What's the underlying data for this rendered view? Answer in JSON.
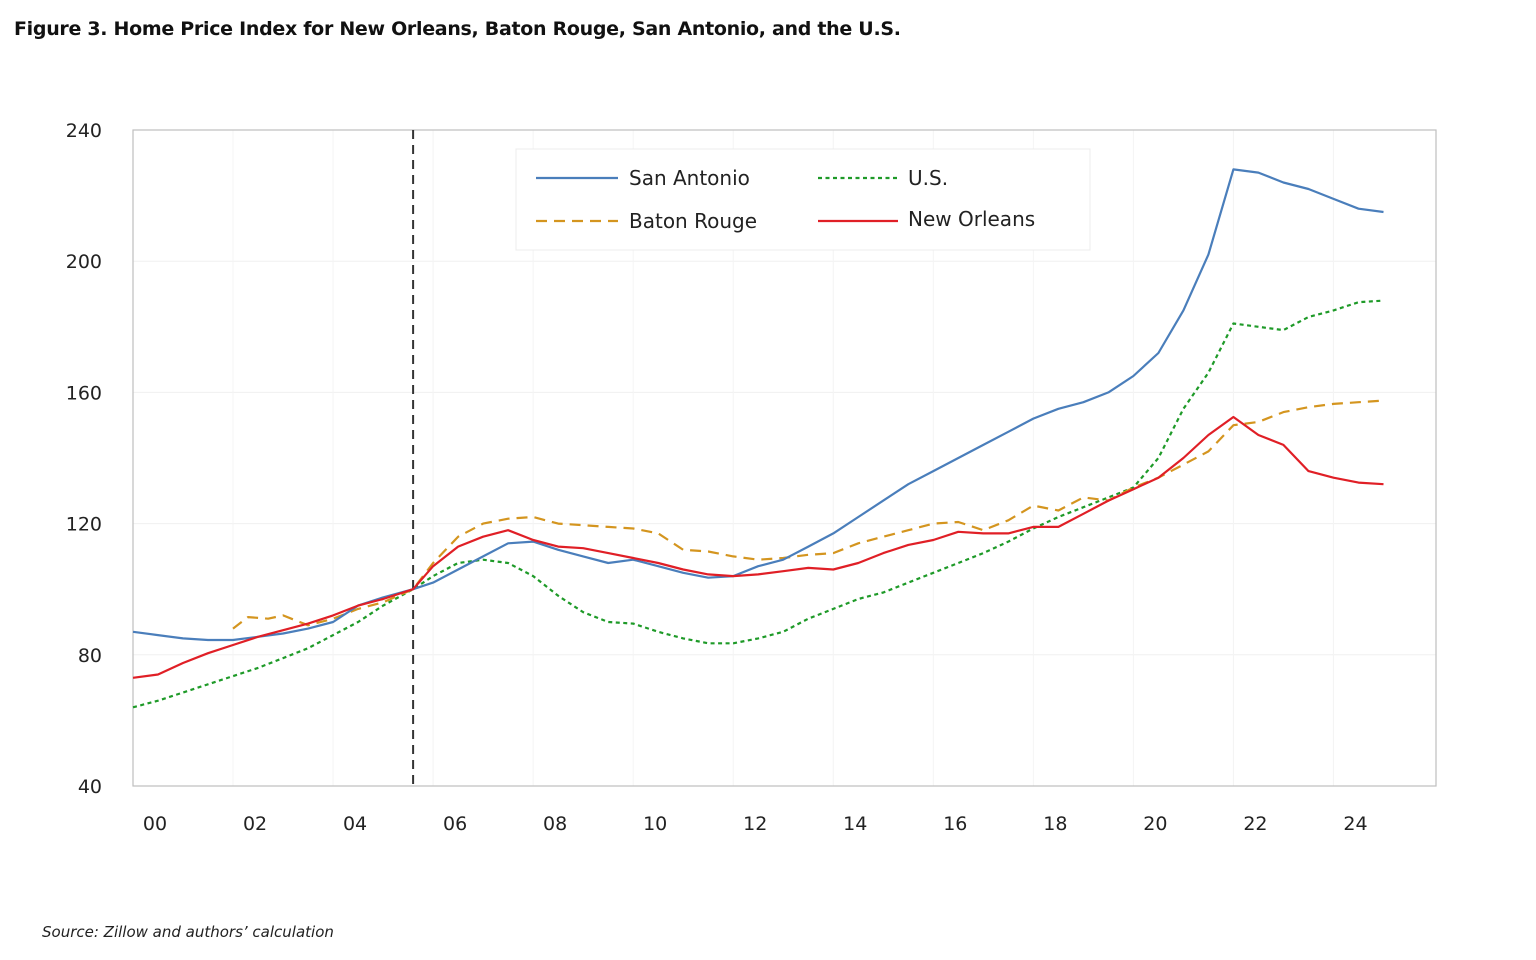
{
  "figure": {
    "title": "Figure 3. Home Price Index for New Orleans, Baton Rouge, San Antonio, and the U.S.",
    "source": "Source: Zillow and authors’ calculation"
  },
  "chart_data": {
    "type": "line",
    "title": "Figure 3. Home Price Index for New Orleans, Baton Rouge, San Antonio, and the U.S.",
    "xlabel": "",
    "ylabel": "",
    "xlim": [
      2000,
      2025.6
    ],
    "ylim": [
      40,
      240
    ],
    "yticks": [
      40,
      80,
      120,
      160,
      200,
      240
    ],
    "xticks": [
      {
        "value": 2000,
        "label": "00"
      },
      {
        "value": 2002,
        "label": "02"
      },
      {
        "value": 2004,
        "label": "04"
      },
      {
        "value": 2006,
        "label": "06"
      },
      {
        "value": 2008,
        "label": "08"
      },
      {
        "value": 2010,
        "label": "10"
      },
      {
        "value": 2012,
        "label": "12"
      },
      {
        "value": 2014,
        "label": "14"
      },
      {
        "value": 2016,
        "label": "16"
      },
      {
        "value": 2018,
        "label": "18"
      },
      {
        "value": 2020,
        "label": "20"
      },
      {
        "value": 2022,
        "label": "22"
      },
      {
        "value": 2024,
        "label": "24"
      }
    ],
    "reference_line": {
      "x": 2005.6,
      "style": "dashed",
      "color": "#333333"
    },
    "grid": true,
    "legend_position": "top-center",
    "series": [
      {
        "name": "San Antonio",
        "color": "#4a7ebb",
        "dash": "solid",
        "points": [
          [
            2000,
            87
          ],
          [
            2000.5,
            86
          ],
          [
            2001,
            85
          ],
          [
            2001.5,
            84.5
          ],
          [
            2002,
            84.5
          ],
          [
            2002.5,
            85.5
          ],
          [
            2003,
            86.5
          ],
          [
            2003.5,
            88
          ],
          [
            2004,
            90
          ],
          [
            2004.5,
            95
          ],
          [
            2005,
            97.5
          ],
          [
            2005.6,
            100
          ],
          [
            2006,
            102
          ],
          [
            2006.5,
            106
          ],
          [
            2007,
            110
          ],
          [
            2007.5,
            114
          ],
          [
            2008,
            114.5
          ],
          [
            2008.5,
            112
          ],
          [
            2009,
            110
          ],
          [
            2009.5,
            108
          ],
          [
            2010,
            109
          ],
          [
            2010.5,
            107
          ],
          [
            2011,
            105
          ],
          [
            2011.5,
            103.5
          ],
          [
            2012,
            104
          ],
          [
            2012.5,
            107
          ],
          [
            2013,
            109
          ],
          [
            2013.5,
            113
          ],
          [
            2014,
            117
          ],
          [
            2014.5,
            122
          ],
          [
            2015,
            127
          ],
          [
            2015.5,
            132
          ],
          [
            2016,
            136
          ],
          [
            2016.5,
            140
          ],
          [
            2017,
            144
          ],
          [
            2017.5,
            148
          ],
          [
            2018,
            152
          ],
          [
            2018.5,
            155
          ],
          [
            2019,
            157
          ],
          [
            2019.5,
            160
          ],
          [
            2020,
            165
          ],
          [
            2020.5,
            172
          ],
          [
            2021,
            185
          ],
          [
            2021.5,
            202
          ],
          [
            2022,
            228
          ],
          [
            2022.5,
            227
          ],
          [
            2023,
            224
          ],
          [
            2023.5,
            222
          ],
          [
            2024,
            219
          ],
          [
            2024.5,
            216
          ],
          [
            2025,
            215
          ]
        ]
      },
      {
        "name": "Baton Rouge",
        "color": "#d4951f",
        "dash": "dashed",
        "points": [
          [
            2002,
            88
          ],
          [
            2002.3,
            91.5
          ],
          [
            2002.7,
            91
          ],
          [
            2003,
            92
          ],
          [
            2003.5,
            89
          ],
          [
            2004,
            91
          ],
          [
            2004.5,
            94
          ],
          [
            2005,
            96
          ],
          [
            2005.6,
            100
          ],
          [
            2006,
            108
          ],
          [
            2006.5,
            116
          ],
          [
            2007,
            120
          ],
          [
            2007.5,
            121.5
          ],
          [
            2008,
            122
          ],
          [
            2008.5,
            120
          ],
          [
            2009,
            119.5
          ],
          [
            2009.5,
            119
          ],
          [
            2010,
            118.5
          ],
          [
            2010.5,
            117
          ],
          [
            2011,
            112
          ],
          [
            2011.5,
            111.5
          ],
          [
            2012,
            110
          ],
          [
            2012.5,
            109
          ],
          [
            2013,
            109.5
          ],
          [
            2013.5,
            110.5
          ],
          [
            2014,
            111
          ],
          [
            2014.5,
            114
          ],
          [
            2015,
            116
          ],
          [
            2015.5,
            118
          ],
          [
            2016,
            120
          ],
          [
            2016.5,
            120.5
          ],
          [
            2017,
            118
          ],
          [
            2017.5,
            121
          ],
          [
            2018,
            125.5
          ],
          [
            2018.5,
            124
          ],
          [
            2019,
            128
          ],
          [
            2019.5,
            127
          ],
          [
            2020,
            131
          ],
          [
            2020.5,
            134
          ],
          [
            2021,
            138
          ],
          [
            2021.5,
            142
          ],
          [
            2022,
            150
          ],
          [
            2022.5,
            151
          ],
          [
            2023,
            154
          ],
          [
            2023.5,
            155.5
          ],
          [
            2024,
            156.5
          ],
          [
            2024.5,
            157
          ],
          [
            2025,
            157.5
          ]
        ]
      },
      {
        "name": "U.S.",
        "color": "#1e9a28",
        "dash": "dotted",
        "points": [
          [
            2000,
            64
          ],
          [
            2000.5,
            66
          ],
          [
            2001,
            68.5
          ],
          [
            2001.5,
            71
          ],
          [
            2002,
            73.5
          ],
          [
            2002.5,
            76
          ],
          [
            2003,
            79
          ],
          [
            2003.5,
            82
          ],
          [
            2004,
            86
          ],
          [
            2004.5,
            90
          ],
          [
            2005,
            95
          ],
          [
            2005.6,
            100
          ],
          [
            2006,
            104
          ],
          [
            2006.5,
            108
          ],
          [
            2007,
            109
          ],
          [
            2007.5,
            108
          ],
          [
            2008,
            104
          ],
          [
            2008.5,
            98
          ],
          [
            2009,
            93
          ],
          [
            2009.5,
            90
          ],
          [
            2010,
            89.5
          ],
          [
            2010.5,
            87
          ],
          [
            2011,
            85
          ],
          [
            2011.5,
            83.5
          ],
          [
            2012,
            83.5
          ],
          [
            2012.5,
            85
          ],
          [
            2013,
            87
          ],
          [
            2013.5,
            91
          ],
          [
            2014,
            94
          ],
          [
            2014.5,
            97
          ],
          [
            2015,
            99
          ],
          [
            2015.5,
            102
          ],
          [
            2016,
            105
          ],
          [
            2016.5,
            108
          ],
          [
            2017,
            111
          ],
          [
            2017.5,
            114.5
          ],
          [
            2018,
            118.5
          ],
          [
            2018.5,
            122
          ],
          [
            2019,
            125
          ],
          [
            2019.5,
            128
          ],
          [
            2020,
            131
          ],
          [
            2020.5,
            140
          ],
          [
            2021,
            155
          ],
          [
            2021.5,
            166
          ],
          [
            2022,
            181
          ],
          [
            2022.5,
            180
          ],
          [
            2023,
            179
          ],
          [
            2023.5,
            183
          ],
          [
            2024,
            185
          ],
          [
            2024.5,
            187.5
          ],
          [
            2025,
            188
          ]
        ]
      },
      {
        "name": "New Orleans",
        "color": "#e01f26",
        "dash": "solid",
        "points": [
          [
            2000,
            73
          ],
          [
            2000.5,
            74
          ],
          [
            2001,
            77.5
          ],
          [
            2001.5,
            80.5
          ],
          [
            2002,
            83
          ],
          [
            2002.5,
            85.5
          ],
          [
            2003,
            87.5
          ],
          [
            2003.5,
            89.5
          ],
          [
            2004,
            92
          ],
          [
            2004.5,
            95
          ],
          [
            2005,
            97
          ],
          [
            2005.6,
            100
          ],
          [
            2006,
            107
          ],
          [
            2006.5,
            113
          ],
          [
            2007,
            116
          ],
          [
            2007.5,
            118
          ],
          [
            2008,
            115
          ],
          [
            2008.5,
            113
          ],
          [
            2009,
            112.5
          ],
          [
            2009.5,
            111
          ],
          [
            2010,
            109.5
          ],
          [
            2010.5,
            108
          ],
          [
            2011,
            106
          ],
          [
            2011.5,
            104.5
          ],
          [
            2012,
            104
          ],
          [
            2012.5,
            104.5
          ],
          [
            2013,
            105.5
          ],
          [
            2013.5,
            106.5
          ],
          [
            2014,
            106
          ],
          [
            2014.5,
            108
          ],
          [
            2015,
            111
          ],
          [
            2015.5,
            113.5
          ],
          [
            2016,
            115
          ],
          [
            2016.5,
            117.5
          ],
          [
            2017,
            117
          ],
          [
            2017.5,
            117
          ],
          [
            2018,
            119
          ],
          [
            2018.5,
            119
          ],
          [
            2019,
            123
          ],
          [
            2019.5,
            127
          ],
          [
            2020,
            130.5
          ],
          [
            2020.5,
            134
          ],
          [
            2021,
            140
          ],
          [
            2021.5,
            147
          ],
          [
            2022,
            152.5
          ],
          [
            2022.5,
            147
          ],
          [
            2023,
            144
          ],
          [
            2023.5,
            136
          ],
          [
            2024,
            134
          ],
          [
            2024.5,
            132.5
          ],
          [
            2025,
            132
          ]
        ]
      }
    ]
  }
}
